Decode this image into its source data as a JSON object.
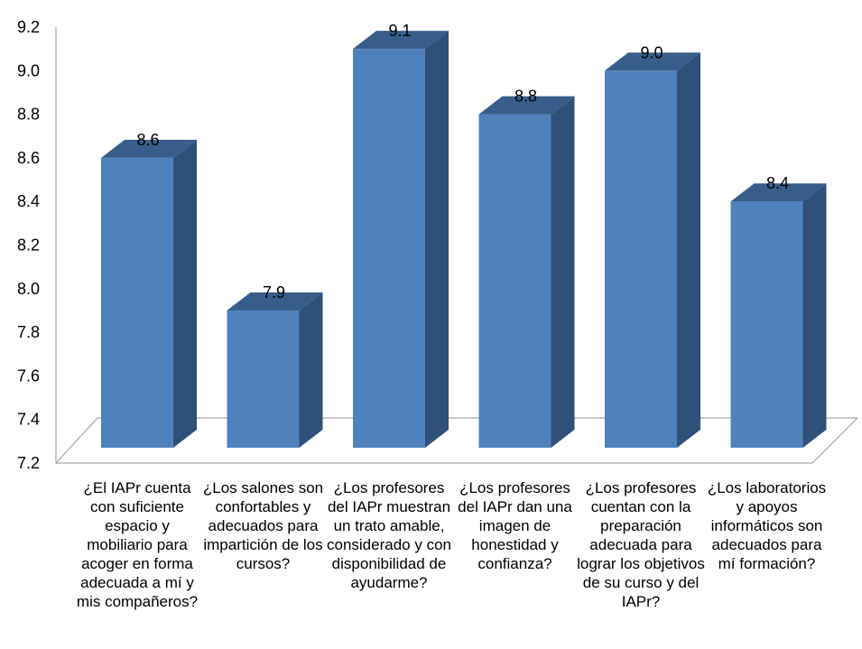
{
  "chart_data": {
    "type": "bar",
    "style": "3d-column",
    "categories": [
      "¿El IAPr cuenta con suficiente espacio y mobiliario para acoger en forma adecuada a mí y mis compañeros?",
      "¿Los salones son confortables y adecuados para impartición de los cursos?",
      "¿Los profesores del IAPr muestran un trato amable, considerado y con disponibilidad de ayudarme?",
      "¿Los profesores del IAPr dan una imagen de honestidad y confianza?",
      "¿Los profesores cuentan con la preparación adecuada para lograr los objetivos de su curso y del IAPr?",
      "¿Los laboratorios y apoyos informáticos son adecuados para mí formación?"
    ],
    "values": [
      8.6,
      7.9,
      9.1,
      8.8,
      9.0,
      8.4
    ],
    "data_labels": [
      "8.6",
      "7.9",
      "9.1",
      "8.8",
      "9.0",
      "8.4"
    ],
    "ylim": [
      7.2,
      9.2
    ],
    "yticks": [
      "7.2",
      "7.4",
      "7.6",
      "7.8",
      "8.0",
      "8.2",
      "8.4",
      "8.6",
      "8.8",
      "9.0",
      "9.2"
    ],
    "title": "",
    "xlabel": "",
    "ylabel": "",
    "legend": "none",
    "grid": false,
    "colors": {
      "bar_front": "#4f81bd",
      "bar_side": "#2f5079",
      "bar_top": "#385d8a",
      "axis": "#a6a6a6"
    }
  }
}
